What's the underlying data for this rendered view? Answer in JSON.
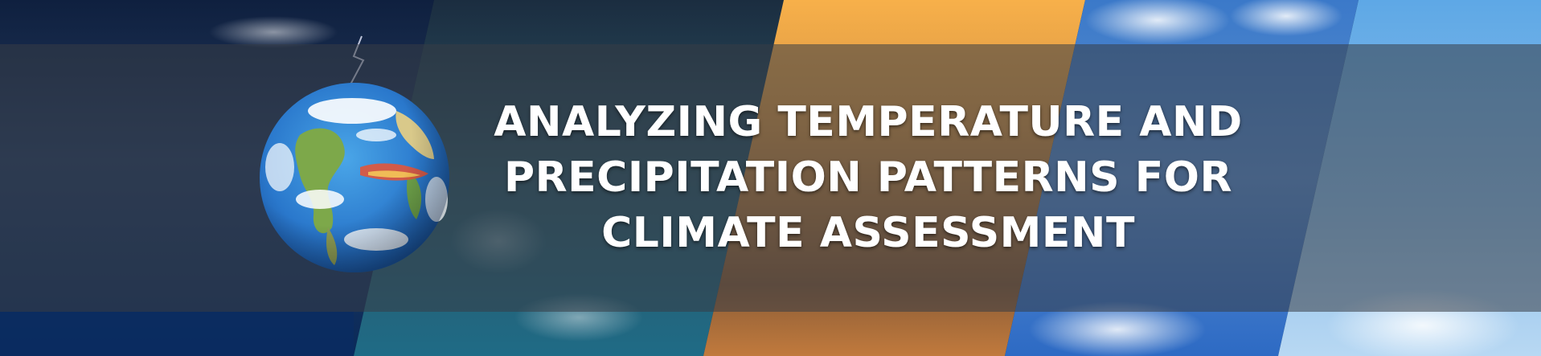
{
  "banner": {
    "title_lines": [
      "ANALYZING TEMPERATURE AND",
      "PRECIPITATION PATTERNS FOR",
      "CLIMATE ASSESSMENT"
    ]
  },
  "panels": [
    {
      "name": "storm-ocean-panel",
      "colors": [
        "#0d1f3d",
        "#1d3a66",
        "#0a2a55"
      ]
    },
    {
      "name": "wave-panel",
      "colors": [
        "#1f3a4a",
        "#2b5d6e",
        "#1e6a80"
      ]
    },
    {
      "name": "sunset-panel",
      "colors": [
        "#f5a43a",
        "#c98640",
        "#8a5a35"
      ]
    },
    {
      "name": "sky-clouds-panel",
      "colors": [
        "#2e6fc4",
        "#6fa6de",
        "#c9ddf2"
      ]
    },
    {
      "name": "bright-sky-panel",
      "colors": [
        "#4a9be0",
        "#8ec3ee",
        "#d8eaf8"
      ]
    }
  ],
  "icons": {
    "globe": "earth-globe-icon"
  }
}
